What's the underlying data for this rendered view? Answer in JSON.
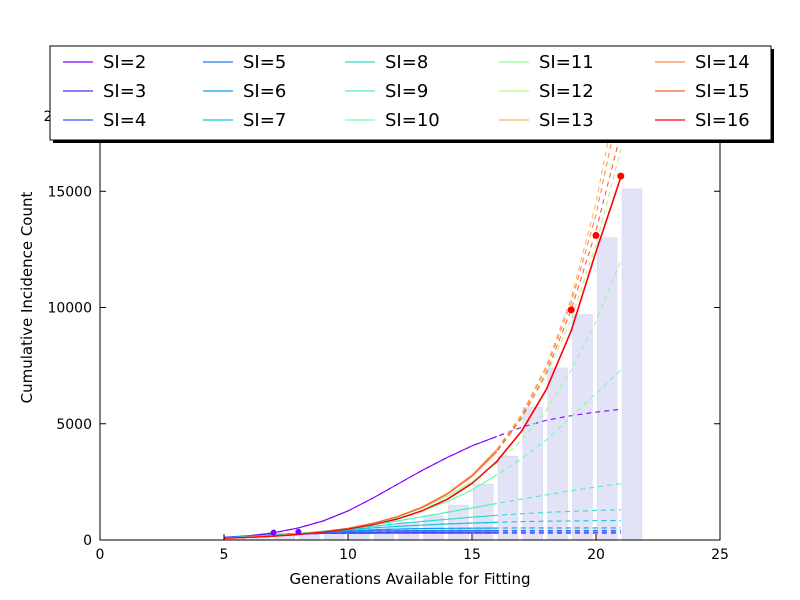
{
  "chart_data": {
    "type": "line",
    "xlabel": "Generations Available for Fitting",
    "ylabel": "Cumulative Incidence Count",
    "xlim": [
      0,
      25
    ],
    "ylim": [
      0,
      20000
    ],
    "x_ticks": [
      "0",
      "5",
      "10",
      "15",
      "20",
      "25"
    ],
    "y_ticks": [
      "0",
      "5000",
      "10000",
      "15000"
    ],
    "y_tick_partial": "2",
    "grid": false,
    "legend_placement": "top",
    "bars": {
      "color": "#e3e3f8",
      "x": [
        5,
        6,
        7,
        8,
        9,
        10,
        11,
        12,
        13,
        14,
        15,
        16,
        17,
        18,
        19,
        20,
        21
      ],
      "values": [
        80,
        120,
        180,
        250,
        330,
        420,
        560,
        760,
        1050,
        1500,
        2400,
        3600,
        5700,
        7400,
        9700,
        13000,
        15100
      ]
    },
    "x_fit": [
      5,
      6,
      7,
      8,
      9,
      10,
      11,
      12,
      13,
      14,
      15,
      16,
      17,
      18,
      19,
      20,
      21
    ],
    "series": [
      {
        "name": "SI=2",
        "color": "#8000ff",
        "values": [
          100,
          180,
          310,
          520,
          820,
          1250,
          1800,
          2400,
          3000,
          3550,
          4050,
          4450,
          4850,
          5150,
          5350,
          5500,
          5620
        ]
      },
      {
        "name": "SI=3",
        "color": "#6025fe",
        "values": [
          120,
          180,
          230,
          260,
          280,
          290,
          295,
          300,
          300,
          300,
          300,
          300,
          300,
          300,
          300,
          300,
          300
        ]
      },
      {
        "name": "SI=4",
        "color": "#4450f9",
        "values": [
          110,
          170,
          230,
          270,
          300,
          320,
          330,
          340,
          345,
          348,
          350,
          350,
          350,
          350,
          350,
          350,
          350
        ]
      },
      {
        "name": "SI=5",
        "color": "#2679f2",
        "values": [
          100,
          160,
          230,
          290,
          340,
          370,
          390,
          400,
          405,
          410,
          410,
          410,
          410,
          410,
          410,
          410,
          410
        ]
      },
      {
        "name": "SI=6",
        "color": "#0a9ee9",
        "values": [
          95,
          150,
          220,
          290,
          350,
          400,
          440,
          470,
          490,
          500,
          510,
          515,
          520,
          520,
          520,
          520,
          520
        ]
      },
      {
        "name": "SI=7",
        "color": "#12c2dd",
        "values": [
          90,
          140,
          210,
          290,
          370,
          450,
          520,
          590,
          640,
          690,
          730,
          760,
          790,
          810,
          820,
          830,
          840
        ]
      },
      {
        "name": "SI=8",
        "color": "#30dcce",
        "values": [
          85,
          130,
          200,
          280,
          380,
          480,
          590,
          700,
          800,
          890,
          980,
          1060,
          1130,
          1190,
          1230,
          1270,
          1300
        ]
      },
      {
        "name": "SI=9",
        "color": "#4ef0bc",
        "values": [
          80,
          120,
          190,
          270,
          380,
          500,
          650,
          820,
          1000,
          1190,
          1380,
          1570,
          1760,
          1940,
          2120,
          2280,
          2420
        ]
      },
      {
        "name": "SI=10",
        "color": "#6efcaa",
        "values": [
          80,
          120,
          180,
          260,
          370,
          510,
          700,
          940,
          1250,
          1650,
          2150,
          2800,
          3500,
          4300,
          5300,
          6300,
          7300
        ]
      },
      {
        "name": "SI=11",
        "color": "#90fe94",
        "values": [
          80,
          120,
          180,
          260,
          360,
          510,
          720,
          1000,
          1380,
          1880,
          2500,
          3300,
          4300,
          5600,
          7300,
          9400,
          12000
        ]
      },
      {
        "name": "SI=12",
        "color": "#b0f57f",
        "values": [
          80,
          120,
          180,
          255,
          360,
          500,
          720,
          1010,
          1420,
          1980,
          2750,
          3800,
          5200,
          7100,
          9500,
          12700,
          16800
        ]
      },
      {
        "name": "SI=13",
        "color": "#ffb360",
        "values": [
          80,
          120,
          180,
          255,
          360,
          500,
          720,
          1010,
          1430,
          2000,
          2800,
          3900,
          5400,
          7500,
          10400,
          14500,
          20000
        ]
      },
      {
        "name": "SI=14",
        "color": "#ff8a4b",
        "values": [
          80,
          120,
          180,
          255,
          360,
          500,
          720,
          1010,
          1420,
          2000,
          2780,
          3880,
          5350,
          7400,
          10200,
          14000,
          19000
        ]
      },
      {
        "name": "SI=15",
        "color": "#ff5d35",
        "values": [
          80,
          120,
          180,
          255,
          360,
          500,
          715,
          1000,
          1400,
          1970,
          2740,
          3800,
          5250,
          7200,
          9900,
          13300,
          17500
        ]
      },
      {
        "name": "SI=16",
        "color": "#ff0000",
        "values": [
          80,
          115,
          170,
          240,
          340,
          470,
          660,
          910,
          1260,
          1750,
          2430,
          3380,
          4680,
          6480,
          9000,
          12400,
          15600
        ]
      }
    ],
    "fitted_marker": {
      "name": "SI=16",
      "x": [
        19,
        20,
        21
      ],
      "values": [
        9900,
        13100,
        15650
      ]
    }
  }
}
